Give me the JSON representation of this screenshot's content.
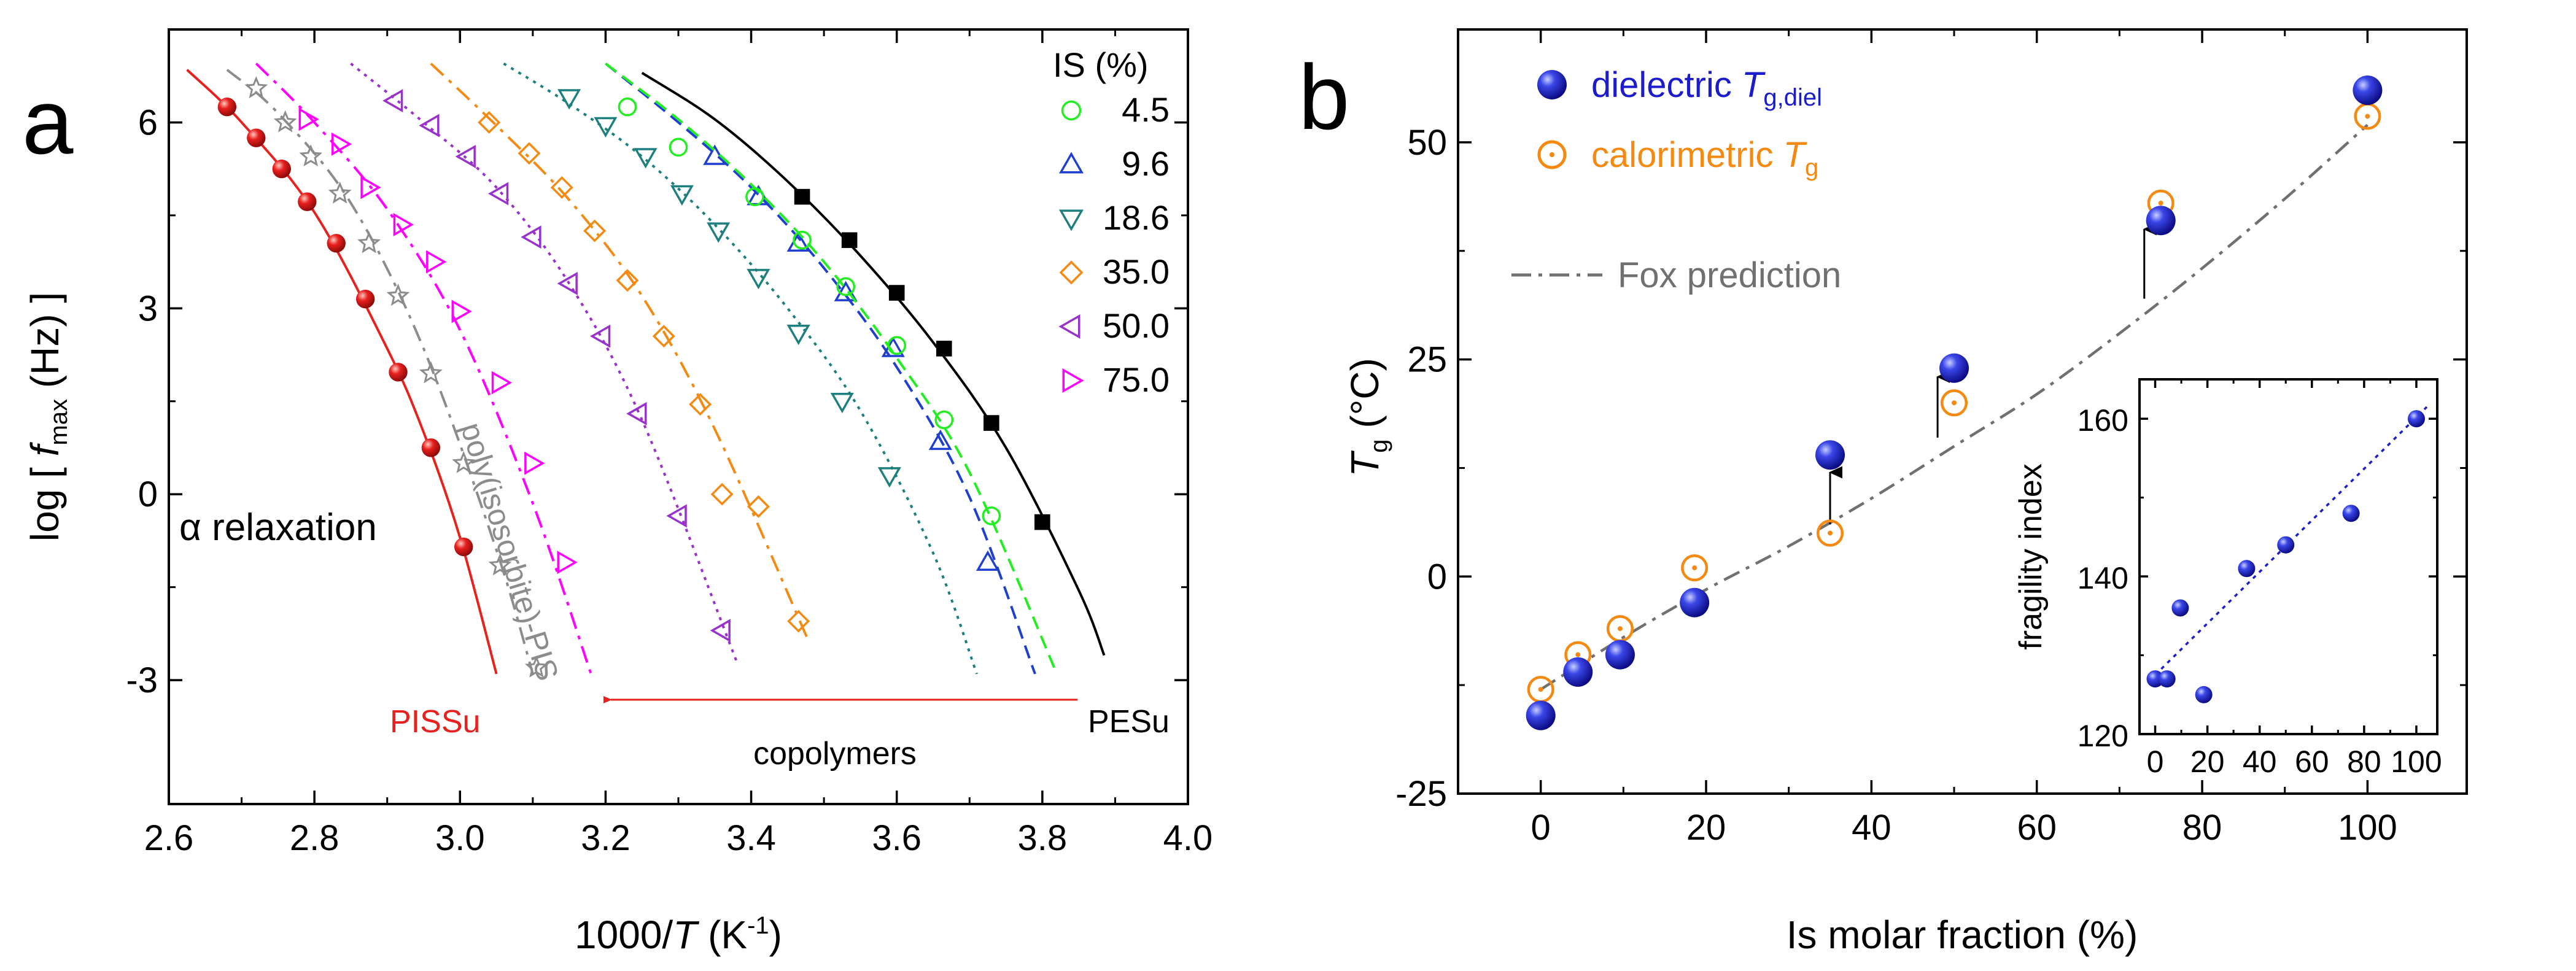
{
  "chart_data": [
    {
      "type": "line",
      "panel": "a",
      "xlabel_parts": [
        "1000/",
        "T",
        " (K",
        "-1",
        ")"
      ],
      "ylabel_parts": [
        "log [ ",
        "f",
        "max",
        " (Hz) ]"
      ],
      "xlim": [
        2.6,
        4.0
      ],
      "ylim": [
        -5,
        7.5
      ],
      "xticks": [
        "2.6",
        "2.8",
        "3.0",
        "3.2",
        "3.4",
        "3.6",
        "3.8",
        "4.0"
      ],
      "yticks": [
        "-3",
        "0",
        "3",
        "6"
      ],
      "legend_title": "IS (%)",
      "series": [
        {
          "name": "PISSu",
          "label": "",
          "color": "#e8201e",
          "marker": "filled-circle",
          "line": "solid",
          "x": [
            2.68,
            2.72,
            2.755,
            2.79,
            2.83,
            2.87,
            2.915,
            2.96,
            3.005
          ],
          "y": [
            6.25,
            5.75,
            5.25,
            4.72,
            4.05,
            3.15,
            1.97,
            0.75,
            -0.85
          ],
          "fit_x": [
            2.625,
            2.7,
            2.8,
            2.9,
            2.95,
            3.0,
            3.05
          ],
          "fit_y": [
            6.85,
            6.0,
            4.55,
            2.35,
            1.0,
            -0.7,
            -2.9
          ]
        },
        {
          "name": "poly(isosorbite)-PIS",
          "label": "",
          "color": "#8c8c8c",
          "marker": "open-star",
          "line": "dashdot",
          "x": [
            2.72,
            2.76,
            2.795,
            2.835,
            2.875,
            2.915,
            2.96,
            3.005,
            3.055,
            3.105
          ],
          "y": [
            6.55,
            6.0,
            5.45,
            4.85,
            4.05,
            3.2,
            1.95,
            0.5,
            -1.15,
            -2.8
          ],
          "fit_x": [
            2.68,
            2.75,
            2.85,
            2.95,
            3.05,
            3.1
          ],
          "fit_y": [
            6.85,
            6.15,
            4.7,
            2.35,
            -0.9,
            -2.9
          ]
        },
        {
          "name": "75.0",
          "label": "75.0",
          "color": "#ff00ff",
          "marker": "open-triangle-right",
          "line": "dashdot",
          "x": [
            2.79,
            2.835,
            2.875,
            2.92,
            2.965,
            3.0,
            3.055,
            3.1,
            3.145
          ],
          "y": [
            6.05,
            5.65,
            4.95,
            4.35,
            3.75,
            2.95,
            1.8,
            0.5,
            -1.1
          ],
          "fit_x": [
            2.72,
            2.8,
            2.9,
            3.0,
            3.1,
            3.18
          ],
          "fit_y": [
            6.95,
            6.0,
            4.6,
            2.65,
            -0.15,
            -2.9
          ]
        },
        {
          "name": "50.0",
          "label": "50.0",
          "color": "#9932cc",
          "marker": "open-triangle-left",
          "line": "dotted",
          "x": [
            2.91,
            2.96,
            3.01,
            3.055,
            3.1,
            3.15,
            3.195,
            3.245,
            3.3,
            3.36
          ],
          "y": [
            6.35,
            5.95,
            5.45,
            4.85,
            4.15,
            3.4,
            2.55,
            1.3,
            -0.35,
            -2.2
          ],
          "fit_x": [
            2.85,
            2.95,
            3.05,
            3.15,
            3.25,
            3.38
          ],
          "fit_y": [
            6.95,
            6.0,
            4.95,
            3.4,
            1.2,
            -2.7
          ]
        },
        {
          "name": "35.0",
          "label": "35.0",
          "color": "#f48a12",
          "marker": "open-diamond",
          "line": "dashdot",
          "x": [
            3.04,
            3.095,
            3.14,
            3.185,
            3.23,
            3.28,
            3.33,
            3.36,
            3.41,
            3.465
          ],
          "y": [
            6.0,
            5.5,
            4.95,
            4.25,
            3.45,
            2.55,
            1.45,
            0.0,
            -0.2,
            -2.05
          ],
          "fit_x": [
            2.96,
            3.05,
            3.15,
            3.25,
            3.35,
            3.48
          ],
          "fit_y": [
            6.95,
            5.95,
            4.75,
            3.2,
            1.05,
            -2.4
          ]
        },
        {
          "name": "18.6",
          "label": "18.6",
          "color": "#1e7f7f",
          "marker": "open-triangle-down",
          "line": "dotted",
          "x": [
            3.15,
            3.2,
            3.255,
            3.305,
            3.355,
            3.41,
            3.465,
            3.525,
            3.59
          ],
          "y": [
            6.4,
            5.95,
            5.45,
            4.85,
            4.25,
            3.5,
            2.6,
            1.5,
            0.3
          ],
          "fit_x": [
            3.06,
            3.15,
            3.25,
            3.35,
            3.45,
            3.55,
            3.65,
            3.71
          ],
          "fit_y": [
            6.95,
            6.3,
            5.45,
            4.35,
            3.0,
            1.35,
            -0.95,
            -2.9
          ]
        },
        {
          "name": "9.6",
          "label": "9.6",
          "color": "#1f3fd0",
          "marker": "open-triangle-up",
          "line": "dashed",
          "x": [
            3.35,
            3.41,
            3.465,
            3.53,
            3.595,
            3.66,
            3.725
          ],
          "y": [
            5.45,
            4.8,
            4.05,
            3.25,
            2.35,
            0.85,
            -1.1
          ],
          "fit_x": [
            3.2,
            3.3,
            3.4,
            3.5,
            3.6,
            3.7,
            3.79
          ],
          "fit_y": [
            6.95,
            6.0,
            4.95,
            3.65,
            2.05,
            -0.05,
            -2.9
          ]
        },
        {
          "name": "4.5",
          "label": "4.5",
          "color": "#22ee22",
          "marker": "open-circle",
          "line": "dashed",
          "x": [
            3.23,
            3.3,
            3.405,
            3.47,
            3.53,
            3.6,
            3.665,
            3.73
          ],
          "y": [
            6.25,
            5.6,
            4.8,
            4.1,
            3.35,
            2.4,
            1.2,
            -0.35
          ],
          "fit_x": [
            3.2,
            3.3,
            3.4,
            3.5,
            3.6,
            3.7,
            3.82
          ],
          "fit_y": [
            6.95,
            6.05,
            5.0,
            3.75,
            2.2,
            0.35,
            -2.9
          ]
        },
        {
          "name": "PESu",
          "label": "",
          "color": "#000000",
          "marker": "filled-square",
          "line": "solid",
          "x": [
            3.47,
            3.535,
            3.6,
            3.665,
            3.73,
            3.8
          ],
          "y": [
            4.8,
            4.1,
            3.25,
            2.35,
            1.15,
            -0.45
          ],
          "fit_x": [
            3.25,
            3.35,
            3.45,
            3.55,
            3.65,
            3.75,
            3.85,
            3.885
          ],
          "fit_y": [
            6.8,
            6.05,
            5.05,
            3.85,
            2.45,
            0.75,
            -1.55,
            -2.6
          ]
        }
      ],
      "annotations": {
        "alpha_relaxation": "α relaxation",
        "pis_label": "poly(isosorbite)-PIS",
        "pissu_label": "PISSu",
        "pesu_label": "PESu",
        "copolymers_label": "copolymers",
        "panel_label": "a"
      }
    },
    {
      "type": "scatter",
      "panel": "b",
      "xlabel": "Is molar fraction (%)",
      "ylabel_parts": [
        "T",
        "g",
        " (°C)"
      ],
      "xlim": [
        -10,
        112
      ],
      "ylim": [
        -25,
        63
      ],
      "xticks": [
        "0",
        "20",
        "40",
        "60",
        "80",
        "100"
      ],
      "yticks": [
        "-25",
        "0",
        "25",
        "50"
      ],
      "series": [
        {
          "name": "dielectric",
          "sub": "g,diel",
          "color": "#1c1ccd",
          "marker": "filled-sphere",
          "x": [
            0,
            4.5,
            9.6,
            18.6,
            35.0,
            50.0,
            75.0,
            100.0
          ],
          "y": [
            -16,
            -11,
            -9,
            -3,
            14,
            24,
            41,
            56
          ]
        },
        {
          "name": "calorimetric",
          "sub": "g",
          "color": "#f48a12",
          "marker": "open-circle-dot",
          "x": [
            0,
            4.5,
            9.6,
            18.6,
            35.0,
            50.0,
            75.0,
            100.0
          ],
          "y": [
            -13,
            -9,
            -6,
            1,
            5,
            20,
            43,
            53
          ]
        },
        {
          "name": "Fox prediction",
          "color": "#707070",
          "line": "dashdot",
          "x": [
            0,
            10,
            20,
            30,
            40,
            50,
            60,
            70,
            80,
            90,
            100
          ],
          "y": [
            -13,
            -7,
            -1.5,
            3.5,
            9,
            15,
            21,
            28,
            35.5,
            43.5,
            52
          ]
        }
      ],
      "arrows": [
        {
          "x": 35.0,
          "from": 6,
          "to": 12
        },
        {
          "x": 48.0,
          "from": 16,
          "to": 23
        },
        {
          "x": 73.0,
          "from": 32,
          "to": 40
        }
      ],
      "legend": {
        "dielectric_label": "dielectric ",
        "calorimetric_label": "calorimetric ",
        "T": "T",
        "fox_label": "Fox prediction"
      },
      "panel_label": "b",
      "inset": {
        "type": "scatter",
        "ylabel": "fragility index",
        "xlim": [
          -6,
          108
        ],
        "ylim": [
          120,
          165
        ],
        "xticks": [
          "0",
          "20",
          "40",
          "60",
          "80",
          "100"
        ],
        "yticks": [
          "120",
          "140",
          "160"
        ],
        "x": [
          0,
          4.5,
          9.6,
          18.6,
          35.0,
          50.0,
          75.0,
          100.0
        ],
        "y": [
          127,
          127,
          136,
          125,
          141,
          144,
          148,
          160
        ],
        "fit": {
          "x": [
            0,
            104
          ],
          "y": [
            127.5,
            161.5
          ]
        },
        "color": "#1c1ccd"
      }
    }
  ]
}
